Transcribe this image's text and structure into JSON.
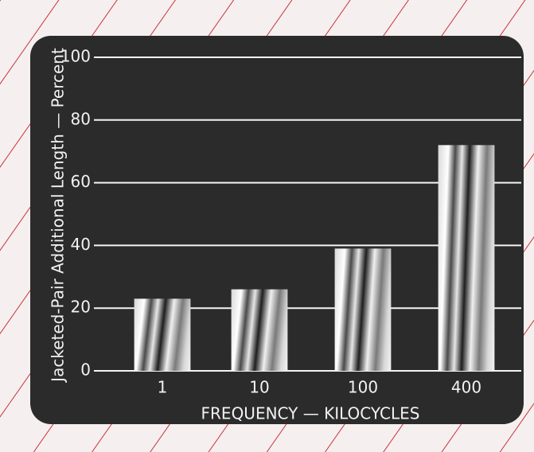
{
  "chart_data": {
    "type": "bar",
    "categories": [
      "1",
      "10",
      "100",
      "400"
    ],
    "values": [
      23,
      26,
      39,
      72
    ],
    "color": "#d8d8d8",
    "ylim": [
      0,
      100
    ],
    "yticks": [
      0,
      20,
      40,
      60,
      80,
      100
    ],
    "grid": true,
    "x_label": "FREQUENCY — KILOCYCLES",
    "y_label": "Jacketed-Pair Additional Length — Percent"
  }
}
